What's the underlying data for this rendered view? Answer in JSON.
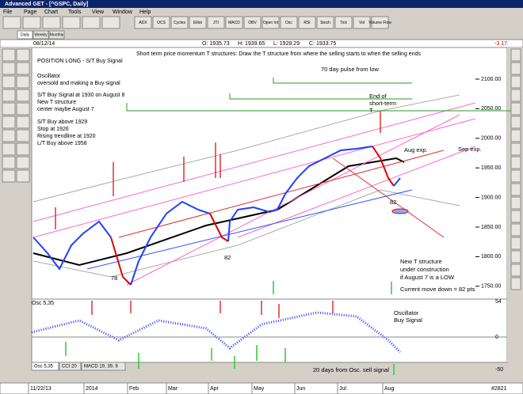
{
  "window": {
    "title": "Advanced GET - [^GSPC, Daily]"
  },
  "menu": [
    "File",
    "Page",
    "Chart",
    "Tools",
    "View",
    "Window",
    "Help"
  ],
  "toolbar": [
    "ADX",
    "OCS",
    "Cycles",
    "Elliot",
    "JTI",
    "MACD",
    "OBV",
    "Open Int",
    "Osc",
    "RSI",
    "Stoch",
    "Tick",
    "Vol",
    "Volume Flow"
  ],
  "tabs": [
    "Daily",
    "Weekly",
    "Monthly"
  ],
  "info": {
    "date": "08/12/14",
    "open": "O: 1935.73",
    "high": "H: 1939.65",
    "low": "L: 1928.29",
    "close": "C: 1933.75",
    "change": "-3.17"
  },
  "chart": {
    "heading": "Short term price momentum T structures: Draw the T structure from where the selling starts to when the selling ends",
    "notes": [
      "POSITION LONG - S/T Buy Signal",
      "Oscillator",
      "oversold and making a Buy signal",
      "S/T Buy Signal at 1930 on August 8",
      "New T structure",
      "center maybe August 7",
      "S/T Buy above 1929",
      "Stop at 1926",
      "Rising trendline at 1920",
      "L/T Buy above 1958"
    ],
    "annotations": [
      "70 day pulse from low",
      "End of",
      "short-term",
      "T",
      "Aug exp.",
      "Sep exp.",
      "82",
      "82",
      "78",
      "New T structure",
      "under construction",
      "if August 7 is a LOW",
      "Current move down = 82 pts"
    ],
    "y_axis": [
      "2100.00",
      "2050.00",
      "2000.00",
      "1950.00",
      "1900.00",
      "1850.00",
      "1800.00",
      "1750.00"
    ]
  },
  "oscillator": {
    "label": "Osc 5,35",
    "annotations": [
      "Oscillator",
      "Buy Signal",
      "20 days from Osc. sell signal"
    ],
    "y_axis": [
      "54",
      "0",
      "-50"
    ]
  },
  "bottom_tabs": [
    "Osc 5,35",
    "CCI 20",
    "MACD 19, 39, 9"
  ],
  "x_axis": [
    "11/22/13",
    "2014",
    "Feb",
    "Mar",
    "Apr",
    "May",
    "Jun",
    "Jul",
    "Aug"
  ],
  "status": "#2821"
}
